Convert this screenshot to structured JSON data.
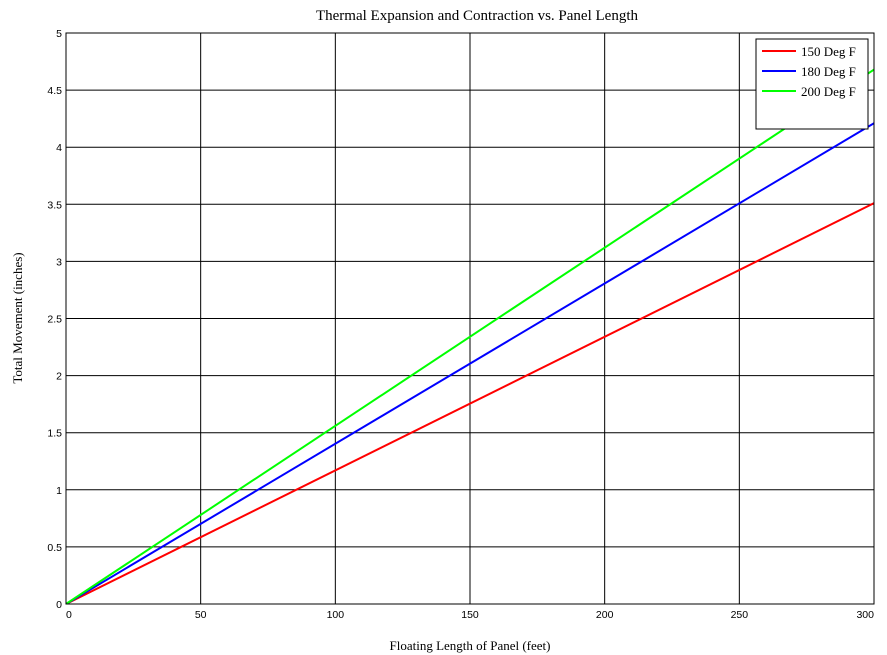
{
  "chart_data": {
    "type": "line",
    "title": "Thermal Expansion and Contraction vs. Panel Length",
    "xlabel": "Floating Length of Panel (feet)",
    "ylabel": "Total Movement (inches)",
    "xlim": [
      0,
      300
    ],
    "ylim": [
      0,
      5
    ],
    "x_ticks": [
      "0",
      "50",
      "100",
      "150",
      "200",
      "250",
      "300"
    ],
    "y_ticks": [
      "0",
      "0.5",
      "1",
      "1.5",
      "2",
      "2.5",
      "3",
      "3.5",
      "4",
      "4.5",
      "5"
    ],
    "grid": true,
    "legend_position": "top-right",
    "series": [
      {
        "name": "150 Deg F",
        "color": "#ff0000",
        "x": [
          0,
          300
        ],
        "y": [
          0,
          3.51
        ]
      },
      {
        "name": "180 Deg F",
        "color": "#0000ff",
        "x": [
          0,
          300
        ],
        "y": [
          0,
          4.21
        ]
      },
      {
        "name": "200 Deg F",
        "color": "#00ff00",
        "x": [
          0,
          300
        ],
        "y": [
          0,
          4.68
        ]
      }
    ]
  }
}
